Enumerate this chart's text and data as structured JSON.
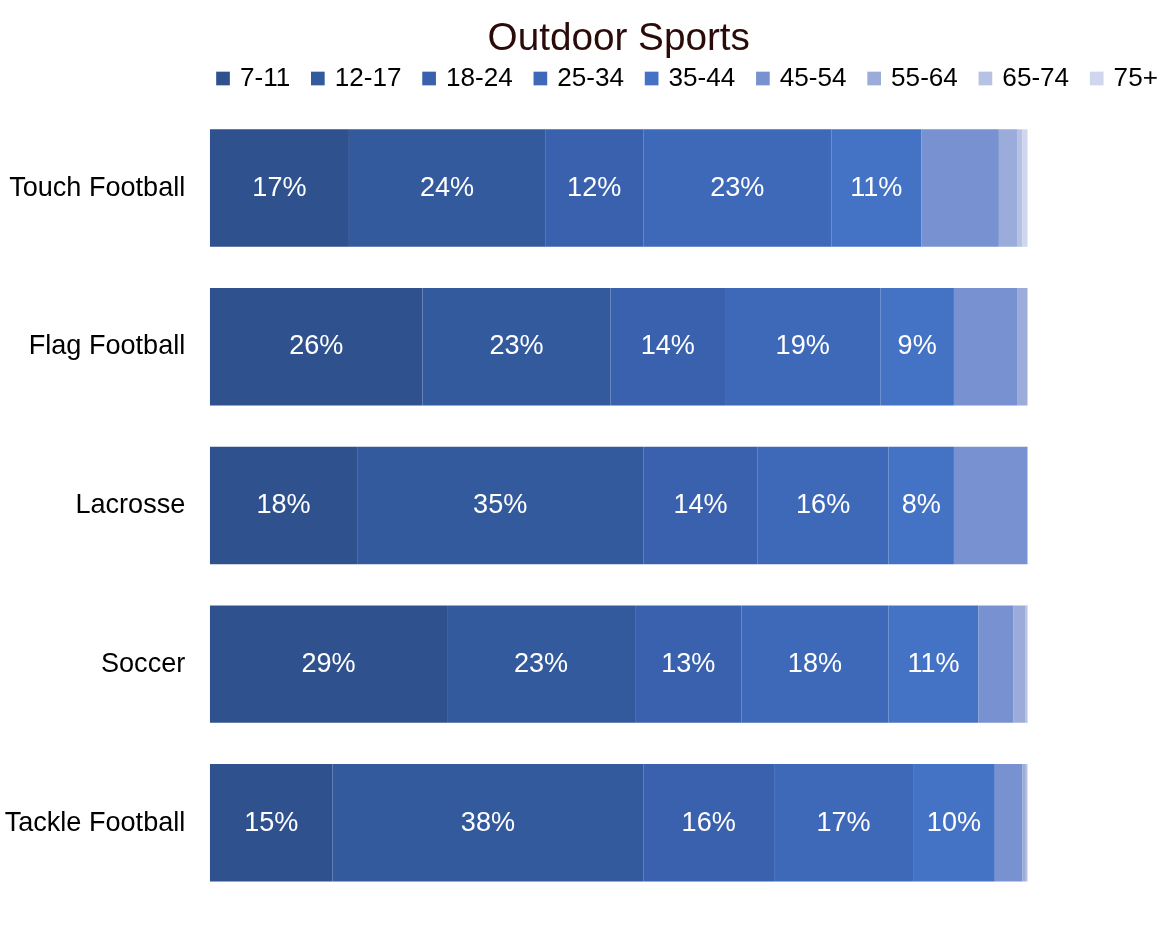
{
  "chart_data": {
    "type": "bar",
    "title": "Outdoor Sports",
    "orientation": "horizontal",
    "stacked": true,
    "legend": "top",
    "grid": false,
    "tick_labels": "y",
    "xlim": [
      0,
      100
    ],
    "categories": [
      "Touch Football",
      "Flag Football",
      "Lacrosse",
      "Soccer",
      "Tackle Football"
    ],
    "series": [
      {
        "name": "7-11",
        "color": "#2f528f",
        "values": [
          17,
          26,
          18,
          29,
          15
        ],
        "value_labels": [
          "17%",
          "26%",
          "18%",
          "29%",
          "15%"
        ]
      },
      {
        "name": "12-17",
        "color": "#345a9e",
        "values": [
          24,
          23,
          35,
          23,
          38
        ],
        "value_labels": [
          "24%",
          "23%",
          "35%",
          "23%",
          "38%"
        ]
      },
      {
        "name": "18-24",
        "color": "#3961ad",
        "values": [
          12,
          14,
          14,
          13,
          16
        ],
        "value_labels": [
          "12%",
          "14%",
          "14%",
          "13%",
          "16%"
        ]
      },
      {
        "name": "25-34",
        "color": "#3e69b9",
        "values": [
          23,
          19,
          16,
          18,
          17
        ],
        "value_labels": [
          "23%",
          "19%",
          "16%",
          "18%",
          "17%"
        ]
      },
      {
        "name": "35-44",
        "color": "#4472c4",
        "values": [
          11,
          9,
          8,
          11,
          10
        ],
        "value_labels": [
          "11%",
          "9%",
          "8%",
          "11%",
          "10%"
        ]
      },
      {
        "name": "45-54",
        "color": "#7891d0",
        "values": [
          9.5,
          7.8,
          9,
          4.3,
          3.4
        ],
        "value_labels": [
          null,
          null,
          null,
          null,
          null
        ]
      },
      {
        "name": "55-64",
        "color": "#9cacda",
        "values": [
          2.3,
          1.2,
          null,
          1.4,
          0.4
        ],
        "value_labels": [
          null,
          null,
          null,
          null,
          null
        ]
      },
      {
        "name": "65-74",
        "color": "#b6c1e3",
        "values": [
          0.6,
          null,
          null,
          0.3,
          0.2
        ],
        "value_labels": [
          null,
          null,
          null,
          null,
          null
        ]
      },
      {
        "name": "75+",
        "color": "#cfd6ed",
        "values": [
          0.6,
          null,
          null,
          null,
          null
        ],
        "value_labels": [
          null,
          null,
          null,
          null,
          null
        ]
      }
    ]
  }
}
